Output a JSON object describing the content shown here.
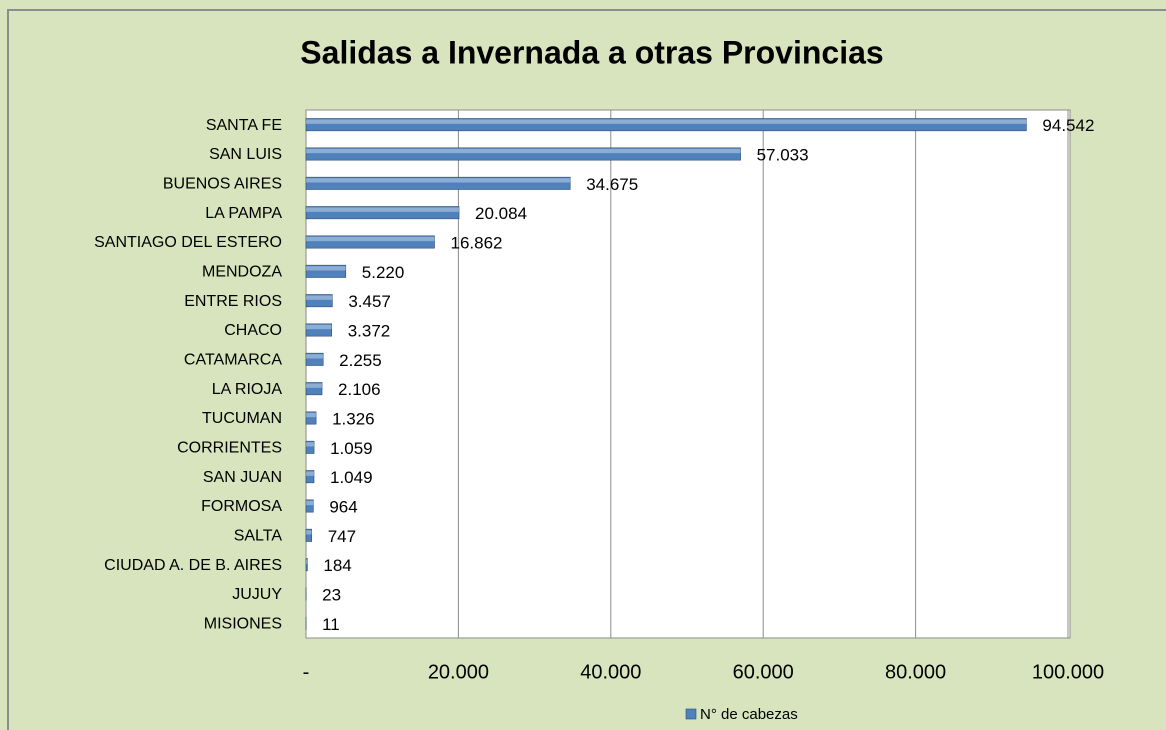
{
  "chart_data": {
    "type": "bar",
    "orientation": "horizontal",
    "title": "Salidas a Invernada a otras Provincias",
    "categories": [
      "SANTA FE",
      "SAN LUIS",
      "BUENOS AIRES",
      "LA PAMPA",
      "SANTIAGO DEL ESTERO",
      "MENDOZA",
      "ENTRE RIOS",
      "CHACO",
      "CATAMARCA",
      "LA RIOJA",
      "TUCUMAN",
      "CORRIENTES",
      "SAN JUAN",
      "FORMOSA",
      "SALTA",
      "CIUDAD A. DE B. AIRES",
      "JUJUY",
      "MISIONES"
    ],
    "series": [
      {
        "name": "N° de cabezas",
        "color": "#4f81bd",
        "values": [
          94542,
          57033,
          34675,
          20084,
          16862,
          5220,
          3457,
          3372,
          2255,
          2106,
          1326,
          1059,
          1049,
          964,
          747,
          184,
          23,
          11
        ],
        "value_labels": [
          "94.542",
          "57.033",
          "34.675",
          "20.084",
          "16.862",
          "5.220",
          "3.457",
          "3.372",
          "2.255",
          "2.106",
          "1.326",
          "1.059",
          "1.049",
          "964",
          "747",
          "184",
          "23",
          "11"
        ]
      }
    ],
    "xlim": [
      0,
      100000
    ],
    "xticks": [
      {
        "value": 0,
        "label": "-"
      },
      {
        "value": 20000,
        "label": "20.000"
      },
      {
        "value": 40000,
        "label": "40.000"
      },
      {
        "value": 60000,
        "label": "60.000"
      },
      {
        "value": 80000,
        "label": "80.000"
      },
      {
        "value": 100000,
        "label": "100.000"
      }
    ],
    "grid": true,
    "legend": "bottom"
  }
}
